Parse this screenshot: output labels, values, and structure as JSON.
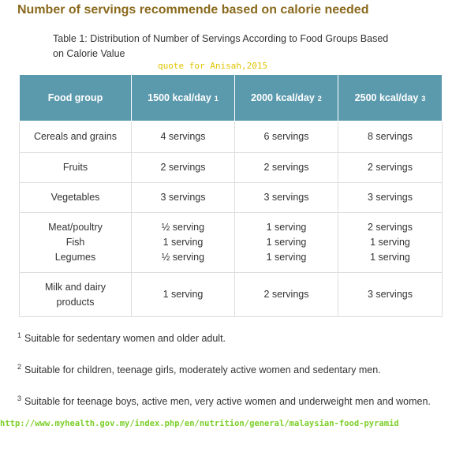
{
  "header": {
    "title": "Number of servings recommende based on calorie needed"
  },
  "caption": {
    "lines": [
      "Table 1: Distribution of Number of Servings According to Food Groups Based",
      "on Calorie Value"
    ]
  },
  "watermark": "quote for Anisah,2015",
  "table": {
    "header": [
      {
        "text": "Food group"
      },
      {
        "text": "1500 kcal/day",
        "sup": "1"
      },
      {
        "text": "2000 kcal/day",
        "sup": "2"
      },
      {
        "text": "2500 kcal/day",
        "sup": "3"
      }
    ],
    "rows": [
      [
        [
          "Cereals and grains"
        ],
        [
          "4 servings"
        ],
        [
          "6 servings"
        ],
        [
          "8 servings"
        ]
      ],
      [
        [
          "Fruits"
        ],
        [
          "2 servings"
        ],
        [
          "2 servings"
        ],
        [
          "2 servings"
        ]
      ],
      [
        [
          "Vegetables"
        ],
        [
          "3 servings"
        ],
        [
          "3 servings"
        ],
        [
          "3 servings"
        ]
      ],
      [
        [
          "Meat/poultry",
          "Fish",
          "Legumes"
        ],
        [
          "½ serving",
          "1 serving",
          "½ serving"
        ],
        [
          "1 serving",
          "1 serving",
          "1 serving"
        ],
        [
          "2 servings",
          "1 serving",
          "1 serving"
        ]
      ],
      [
        [
          "Milk and dairy",
          "products"
        ],
        [
          "1 serving"
        ],
        [
          "2 servings"
        ],
        [
          "3 servings"
        ]
      ]
    ]
  },
  "footnotes": [
    {
      "mark": "1",
      "text": "Suitable for sedentary women and older adult."
    },
    {
      "mark": "2",
      "text": "Suitable for children, teenage girls, moderately active women and sedentary men."
    },
    {
      "mark": "3",
      "text": "Suitable for teenage boys, active men, very active women and underweight men and women."
    }
  ],
  "source_url": "http://www.myhealth.gov.my/index.php/en/nutrition/general/malaysian-food-pyramid"
}
